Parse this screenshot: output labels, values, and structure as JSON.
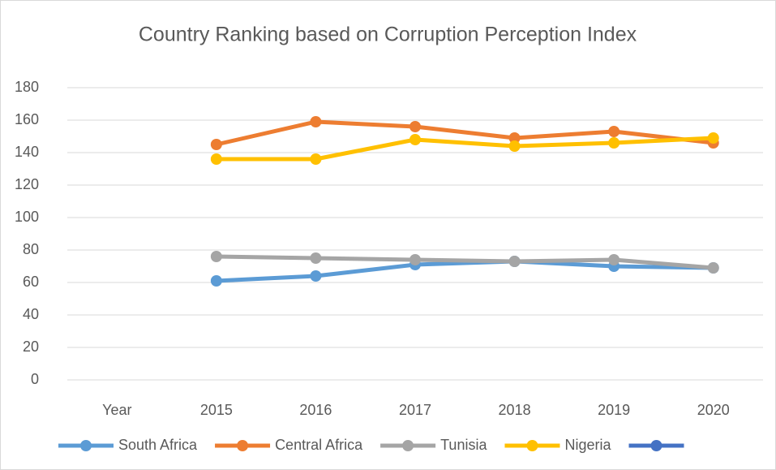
{
  "chart_data": {
    "type": "line",
    "title": "Country Ranking based on Corruption Perception Index",
    "categories": [
      "Year",
      "2015",
      "2016",
      "2017",
      "2018",
      "2019",
      "2020"
    ],
    "series": [
      {
        "name": "South Africa",
        "color": "#5b9bd5",
        "values": [
          null,
          61,
          64,
          71,
          73,
          70,
          69
        ]
      },
      {
        "name": "Central Africa",
        "color": "#ed7d31",
        "values": [
          null,
          145,
          159,
          156,
          149,
          153,
          146
        ]
      },
      {
        "name": "Tunisia",
        "color": "#a5a5a5",
        "values": [
          null,
          76,
          75,
          74,
          73,
          74,
          69
        ]
      },
      {
        "name": "Nigeria",
        "color": "#ffc000",
        "values": [
          null,
          136,
          136,
          148,
          144,
          146,
          149
        ]
      },
      {
        "color": "#4472c4",
        "values": [
          null,
          null,
          null,
          null,
          null,
          null,
          null
        ]
      }
    ],
    "ylim": [
      0,
      180
    ],
    "yticks": [
      0,
      20,
      40,
      60,
      80,
      100,
      120,
      140,
      160,
      180
    ],
    "grid": true,
    "legend": "bottom"
  }
}
